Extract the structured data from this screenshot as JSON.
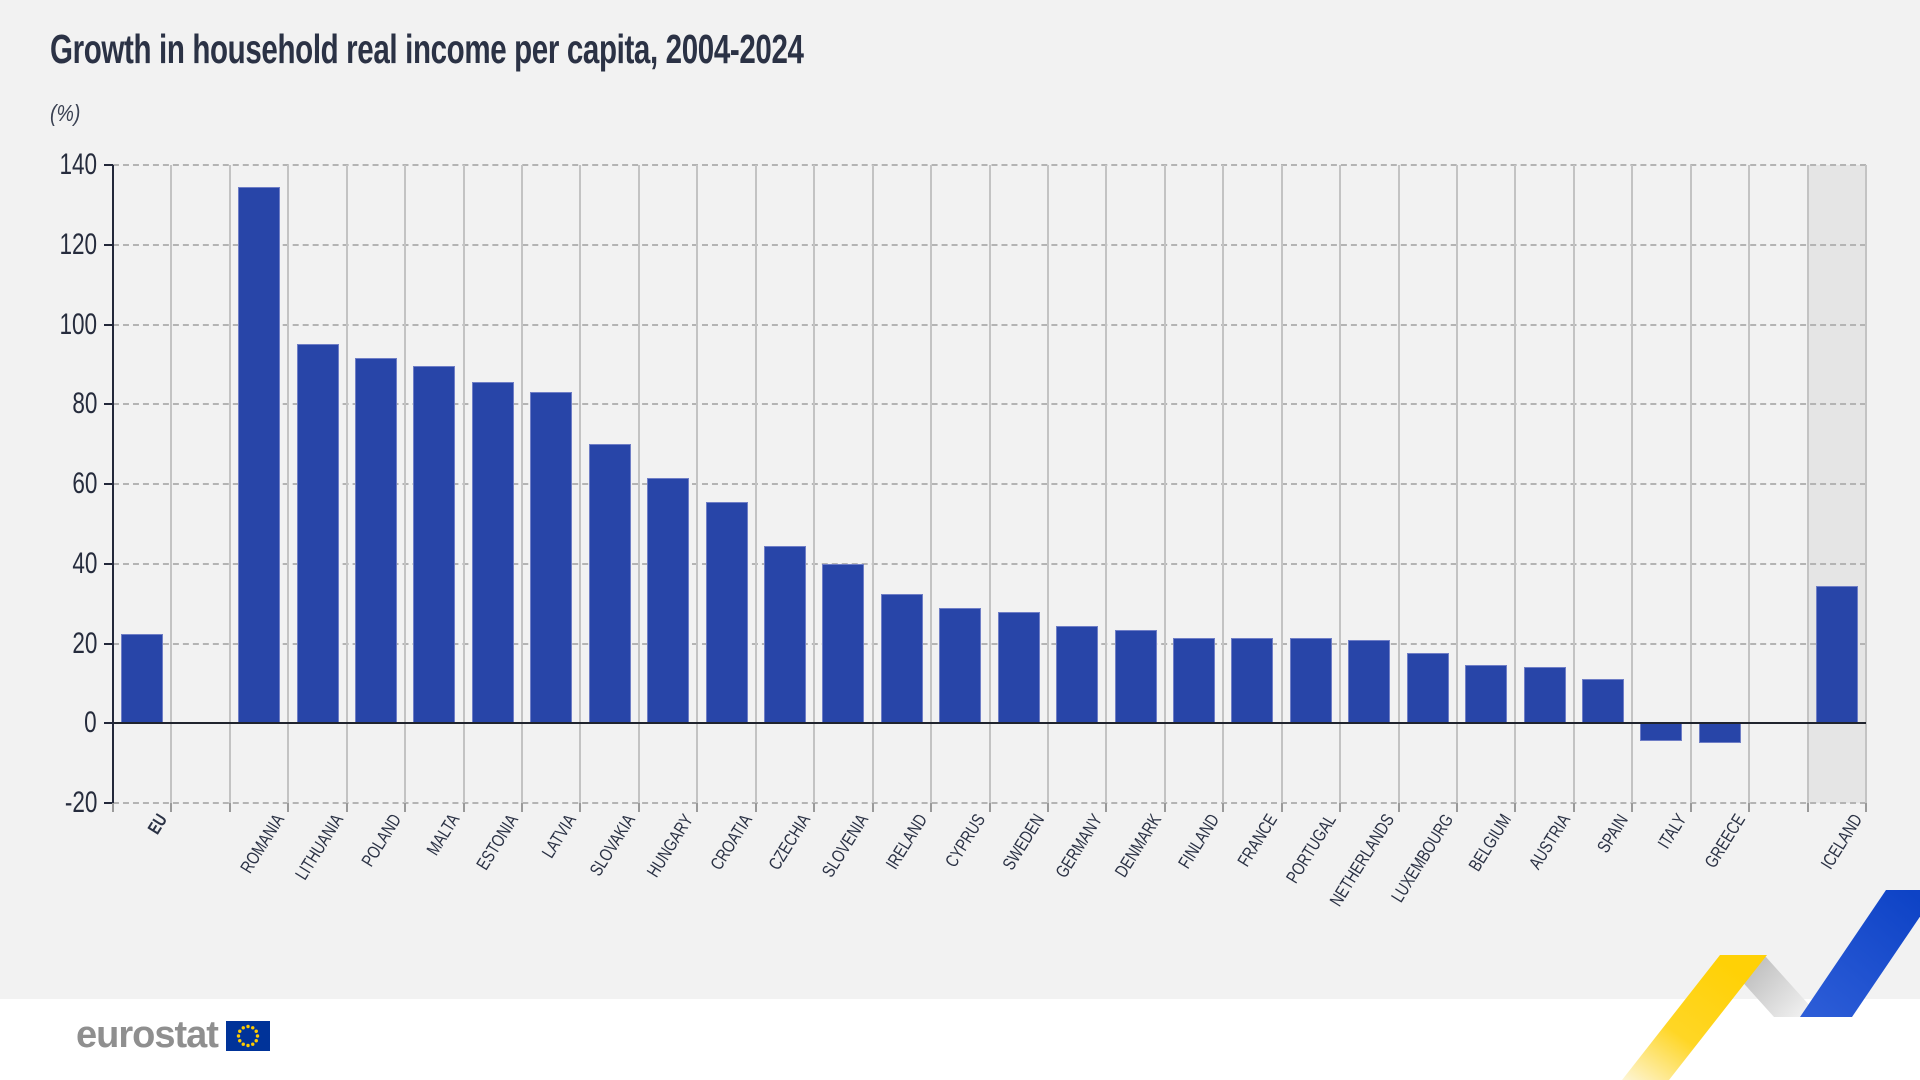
{
  "page": {
    "title": "Growth in household real income per capita, 2004-2024",
    "unit_label": "(%)",
    "footer": {
      "brand": "eurostat"
    }
  },
  "colors": {
    "bar_blue": "#2845a8",
    "page_background": "#f2f2f2",
    "footer_background": "#ffffff",
    "iceland_column_background": "#e5e5e5",
    "grid_dashed": "#b4b4b4",
    "column_separator": "#c3c3c3",
    "axis_dark": "#23283a",
    "text_dark": "#2b3245",
    "logo_gray": "#8f8f8f",
    "flag_blue": "#003399",
    "star_yellow": "#ffcc00",
    "ribbon_yellow": "#ffd106",
    "ribbon_silver": "#c0c0c0",
    "ribbon_blue": "#1c4fd0"
  },
  "chart_data": {
    "type": "bar",
    "title": "Growth in household real income per capita, 2004-2024",
    "ylabel": "(%)",
    "ylim": [
      -20,
      140
    ],
    "ytick_step": 20,
    "y_ticks": [
      140,
      120,
      100,
      80,
      60,
      40,
      20,
      0,
      -20
    ],
    "grid": "horizontal-dashed",
    "legend": "none",
    "series": [
      {
        "label": "EU",
        "value": 22.5,
        "group": "eu-aggregate",
        "emphasis": true,
        "shaded_column": false
      },
      {
        "label": "ROMANIA",
        "value": 134.5,
        "group": "eu-member",
        "emphasis": false,
        "shaded_column": false
      },
      {
        "label": "LITHUANIA",
        "value": 95,
        "group": "eu-member",
        "emphasis": false,
        "shaded_column": false
      },
      {
        "label": "POLAND",
        "value": 91.5,
        "group": "eu-member",
        "emphasis": false,
        "shaded_column": false
      },
      {
        "label": "MALTA",
        "value": 89.5,
        "group": "eu-member",
        "emphasis": false,
        "shaded_column": false
      },
      {
        "label": "ESTONIA",
        "value": 85.5,
        "group": "eu-member",
        "emphasis": false,
        "shaded_column": false
      },
      {
        "label": "LATVIA",
        "value": 83,
        "group": "eu-member",
        "emphasis": false,
        "shaded_column": false
      },
      {
        "label": "SLOVAKIA",
        "value": 70,
        "group": "eu-member",
        "emphasis": false,
        "shaded_column": false
      },
      {
        "label": "HUNGARY",
        "value": 61.5,
        "group": "eu-member",
        "emphasis": false,
        "shaded_column": false
      },
      {
        "label": "CROATIA",
        "value": 55.5,
        "group": "eu-member",
        "emphasis": false,
        "shaded_column": false
      },
      {
        "label": "CZECHIA",
        "value": 44.5,
        "group": "eu-member",
        "emphasis": false,
        "shaded_column": false
      },
      {
        "label": "SLOVENIA",
        "value": 40,
        "group": "eu-member",
        "emphasis": false,
        "shaded_column": false
      },
      {
        "label": "IRELAND",
        "value": 32.5,
        "group": "eu-member",
        "emphasis": false,
        "shaded_column": false
      },
      {
        "label": "CYPRUS",
        "value": 29,
        "group": "eu-member",
        "emphasis": false,
        "shaded_column": false
      },
      {
        "label": "SWEDEN",
        "value": 28,
        "group": "eu-member",
        "emphasis": false,
        "shaded_column": false
      },
      {
        "label": "GERMANY",
        "value": 24.5,
        "group": "eu-member",
        "emphasis": false,
        "shaded_column": false
      },
      {
        "label": "DENMARK",
        "value": 23.5,
        "group": "eu-member",
        "emphasis": false,
        "shaded_column": false
      },
      {
        "label": "FINLAND",
        "value": 21.5,
        "group": "eu-member",
        "emphasis": false,
        "shaded_column": false
      },
      {
        "label": "FRANCE",
        "value": 21.5,
        "group": "eu-member",
        "emphasis": false,
        "shaded_column": false
      },
      {
        "label": "PORTUGAL",
        "value": 21.5,
        "group": "eu-member",
        "emphasis": false,
        "shaded_column": false
      },
      {
        "label": "NETHERLANDS",
        "value": 21,
        "group": "eu-member",
        "emphasis": false,
        "shaded_column": false
      },
      {
        "label": "LUXEMBOURG",
        "value": 17.5,
        "group": "eu-member",
        "emphasis": false,
        "shaded_column": false
      },
      {
        "label": "BELGIUM",
        "value": 14.5,
        "group": "eu-member",
        "emphasis": false,
        "shaded_column": false
      },
      {
        "label": "AUSTRIA",
        "value": 14,
        "group": "eu-member",
        "emphasis": false,
        "shaded_column": false
      },
      {
        "label": "SPAIN",
        "value": 11,
        "group": "eu-member",
        "emphasis": false,
        "shaded_column": false
      },
      {
        "label": "ITALY",
        "value": -4.5,
        "group": "eu-member",
        "emphasis": false,
        "shaded_column": false
      },
      {
        "label": "GREECE",
        "value": -5,
        "group": "eu-member",
        "emphasis": false,
        "shaded_column": false
      },
      {
        "label": "ICELAND",
        "value": 34.5,
        "group": "non-eu",
        "emphasis": false,
        "shaded_column": true
      }
    ]
  }
}
